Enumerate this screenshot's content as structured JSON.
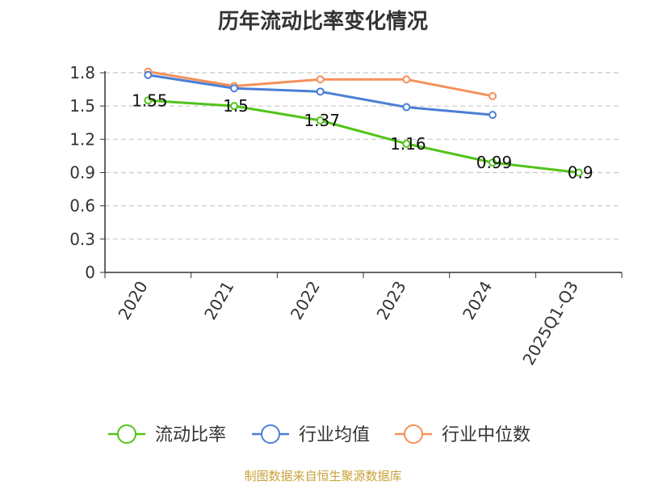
{
  "chart_data": {
    "type": "line",
    "title": "历年流动比率变化情况",
    "categories": [
      "2020",
      "2021",
      "2022",
      "2023",
      "2024",
      "2025Q1-Q3"
    ],
    "yticks": [
      "0",
      "0.3",
      "0.6",
      "0.9",
      "1.2",
      "1.5",
      "1.8"
    ],
    "ylim": [
      0,
      1.8
    ],
    "grid": "horizontal dashed",
    "legend_position": "bottom",
    "series": [
      {
        "name": "流动比率",
        "color": "#52c41a",
        "values": [
          1.55,
          1.5,
          1.37,
          1.16,
          0.99,
          0.9
        ],
        "labels": [
          "1.55",
          "1.5",
          "1.37",
          "1.16",
          "0.99",
          "0.9"
        ]
      },
      {
        "name": "行业均值",
        "color": "#4a7fd6",
        "values": [
          1.78,
          1.66,
          1.63,
          1.49,
          1.42,
          null
        ]
      },
      {
        "name": "行业中位数",
        "color": "#f5905a",
        "values": [
          1.81,
          1.68,
          1.74,
          1.74,
          1.59,
          null
        ]
      }
    ]
  },
  "source_note": "制图数据来自恒生聚源数据库"
}
